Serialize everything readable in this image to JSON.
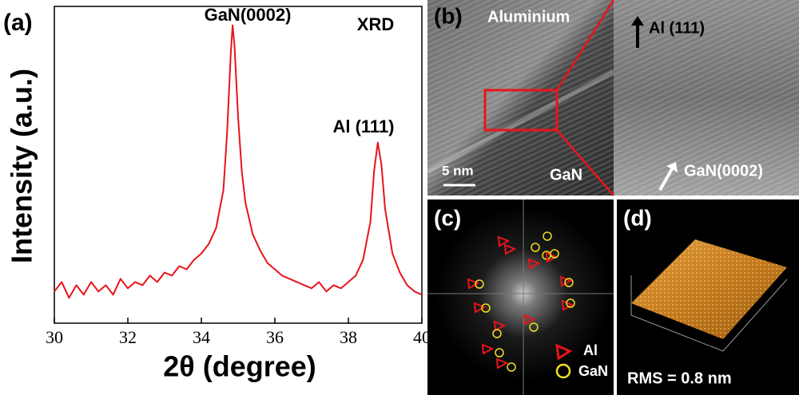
{
  "chart_data": {
    "type": "line",
    "label": "(a)",
    "xlabel": "2θ (degree)",
    "ylabel": "Intensity (a.u.)",
    "annotations": [
      "GaN(0002)",
      "XRD",
      "Al (111)"
    ],
    "color": "#e8141b",
    "xlim": [
      30,
      40
    ],
    "xticks": [
      30,
      32,
      34,
      36,
      38,
      40
    ],
    "ylim": [
      0,
      100
    ],
    "x": [
      30.0,
      30.2,
      30.4,
      30.6,
      30.8,
      31.0,
      31.2,
      31.4,
      31.6,
      31.8,
      32.0,
      32.2,
      32.4,
      32.6,
      32.8,
      33.0,
      33.2,
      33.4,
      33.6,
      33.8,
      34.0,
      34.2,
      34.4,
      34.6,
      34.7,
      34.8,
      34.85,
      34.9,
      35.0,
      35.1,
      35.2,
      35.4,
      35.6,
      35.8,
      36.0,
      36.2,
      36.4,
      36.6,
      36.8,
      37.0,
      37.2,
      37.4,
      37.6,
      37.8,
      38.0,
      38.2,
      38.4,
      38.6,
      38.7,
      38.8,
      38.9,
      39.0,
      39.2,
      39.4,
      39.6,
      39.8,
      40.0
    ],
    "values": [
      10,
      13,
      8,
      12,
      9,
      13,
      10,
      12,
      9,
      14,
      11,
      13,
      12,
      15,
      13,
      16,
      15,
      18,
      17,
      20,
      22,
      25,
      30,
      42,
      60,
      85,
      94,
      88,
      65,
      48,
      38,
      28,
      23,
      19,
      17,
      15,
      14,
      13,
      12,
      11,
      13,
      10,
      12,
      11,
      13,
      15,
      20,
      32,
      48,
      57,
      50,
      36,
      22,
      16,
      12,
      10,
      9
    ]
  },
  "panels": {
    "b": {
      "label": "(b)",
      "top": "Aluminium",
      "bottom": "GaN",
      "scale": "5 nm",
      "zoom_top": "Al (111)",
      "zoom_bottom": "GaN(0002)"
    },
    "c": {
      "label": "(c)",
      "legend": [
        "Al",
        "GaN"
      ]
    },
    "d": {
      "label": "(d)",
      "rms": "RMS = 0.8 nm"
    }
  }
}
